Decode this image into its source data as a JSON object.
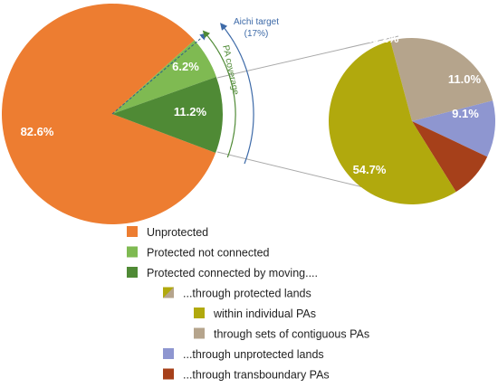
{
  "chart_data": [
    {
      "type": "pie",
      "name": "coverage",
      "slices": [
        {
          "label": "Unprotected",
          "value": 82.6,
          "display": "82.6%",
          "color": "#ed7d31"
        },
        {
          "label": "Protected not connected",
          "value": 6.2,
          "display": "6.2%",
          "color": "#7fba52"
        },
        {
          "label": "Protected connected by moving....",
          "value": 11.2,
          "display": "11.2%",
          "color": "#4f8a35"
        }
      ],
      "annotations": {
        "pa_coverage": "PA coverage",
        "aichi_target_line1": "Aichi target",
        "aichi_target_line2": "(17%)",
        "aichi_target_value": 17,
        "pa_coverage_color": "#4f8a35",
        "aichi_color": "#3d6aa8"
      }
    },
    {
      "type": "pie",
      "name": "connected-breakdown",
      "slices": [
        {
          "label": "through sets of contiguous PAs",
          "value": 25.2,
          "display": "25.2%",
          "color": "#b5a48c"
        },
        {
          "label": "...through unprotected lands",
          "value": 11.0,
          "display": "11.0%",
          "color": "#8e96d0"
        },
        {
          "label": "...through transboundary PAs",
          "value": 9.1,
          "display": "9.1%",
          "color": "#a6401a"
        },
        {
          "label": "within individual PAs",
          "value": 54.7,
          "display": "54.7%",
          "color": "#b1a90d"
        }
      ]
    }
  ],
  "legend": [
    {
      "label": "Unprotected",
      "color": "#ed7d31",
      "indent": 0
    },
    {
      "label": "Protected not connected",
      "color": "#7fba52",
      "indent": 0
    },
    {
      "label": "Protected connected by moving....",
      "color": "#4f8a35",
      "indent": 0
    },
    {
      "label": "...through protected lands",
      "color": "#b1a90d",
      "color2": "#b5a48c",
      "indent": 1
    },
    {
      "label": "within individual PAs",
      "color": "#b1a90d",
      "indent": 2
    },
    {
      "label": "through sets of contiguous PAs",
      "color": "#b5a48c",
      "indent": 2
    },
    {
      "label": "...through unprotected lands",
      "color": "#8e96d0",
      "indent": 1
    },
    {
      "label": "...through transboundary PAs",
      "color": "#a6401a",
      "indent": 1
    }
  ]
}
